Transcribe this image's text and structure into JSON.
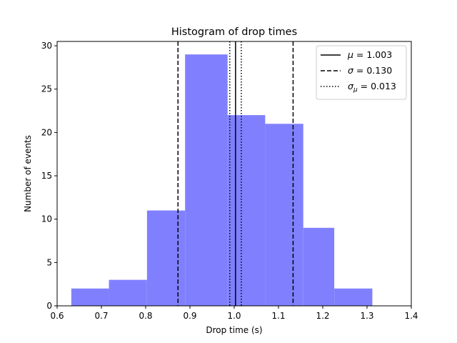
{
  "chart_data": {
    "type": "bar",
    "title": "Histogram of drop times",
    "xlabel": "Drop time (s)",
    "ylabel": "Number of events",
    "xlim": [
      0.6,
      1.4
    ],
    "ylim": [
      0,
      30.5
    ],
    "xticks": [
      "0.6",
      "0.7",
      "0.8",
      "0.9",
      "1.0",
      "1.1",
      "1.2",
      "1.3",
      "1.4"
    ],
    "yticks": [
      "0",
      "5",
      "10",
      "15",
      "20",
      "25",
      "30"
    ],
    "bar_color": "#8080ff",
    "bins": [
      {
        "x0": 0.632,
        "x1": 0.717,
        "count": 2
      },
      {
        "x0": 0.717,
        "x1": 0.803,
        "count": 3
      },
      {
        "x0": 0.803,
        "x1": 0.889,
        "count": 11
      },
      {
        "x0": 0.889,
        "x1": 0.985,
        "count": 29
      },
      {
        "x0": 0.985,
        "x1": 1.07,
        "count": 22
      },
      {
        "x0": 1.07,
        "x1": 1.156,
        "count": 21
      },
      {
        "x0": 1.156,
        "x1": 1.226,
        "count": 9
      },
      {
        "x0": 1.226,
        "x1": 1.312,
        "count": 2
      }
    ],
    "vlines": [
      {
        "x": 1.003,
        "style": "solid"
      },
      {
        "x": 0.873,
        "style": "dashed"
      },
      {
        "x": 1.133,
        "style": "dashed"
      },
      {
        "x": 0.99,
        "style": "dotted"
      },
      {
        "x": 1.016,
        "style": "dotted"
      }
    ],
    "legend": {
      "placement": "top-right",
      "entries": [
        {
          "symbol": "μ",
          "sub": "",
          "text": " = 1.003",
          "style": "solid"
        },
        {
          "symbol": "σ",
          "sub": "",
          "text": " = 0.130",
          "style": "dashed"
        },
        {
          "symbol": "σ",
          "sub": "μ",
          "text": " = 0.013",
          "style": "dotted"
        }
      ]
    }
  }
}
